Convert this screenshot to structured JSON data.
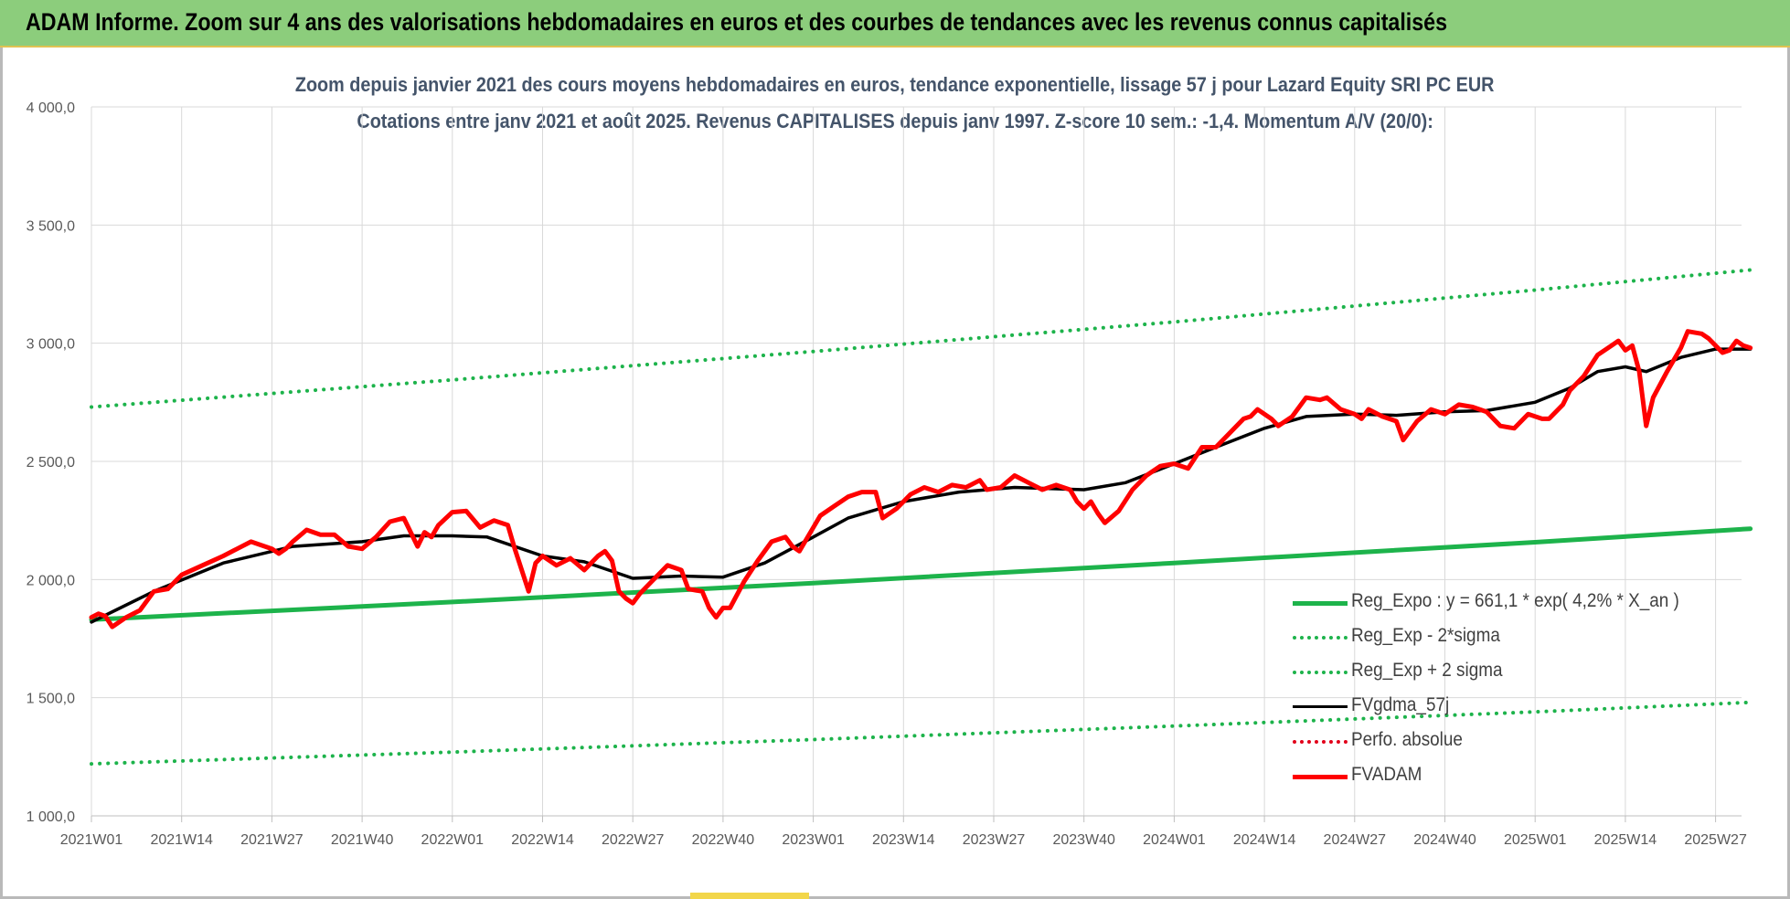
{
  "banner": {
    "title": "ADAM Informe. Zoom sur 4 ans des valorisations hebdomadaires en euros et des courbes de tendances avec les revenus connus capitalisés"
  },
  "colors": {
    "banner_bg": "#8ccd7c",
    "reg_green": "#1db34b",
    "fvgdma": "#000000",
    "perfo": "#e2001a",
    "fvadam": "#ff0000"
  },
  "chart_data": {
    "type": "line",
    "title": "Zoom depuis janvier 2021 des cours moyens hebdomadaires en euros, tendance exponentielle, lissage 57 j pour Lazard Equity SRI PC EUR",
    "subtitle": "Cotations entre janv 2021 et août 2025. Revenus CAPITALISES depuis janv 1997. Z-score 10 sem.: -1,4. Momentum A/V (20/0):",
    "xlabel": "",
    "ylabel": "",
    "ylim": [
      1000,
      4000
    ],
    "y_ticks": [
      "4 000,0",
      "3 500,0",
      "3 000,0",
      "2 500,0",
      "2 000,0",
      "1 500,0",
      "1 000,0"
    ],
    "x_ticks": [
      "2021W01",
      "2021W14",
      "2021W27",
      "2021W40",
      "2022W01",
      "2022W14",
      "2022W27",
      "2022W40",
      "2023W01",
      "2023W14",
      "2023W27",
      "2023W40",
      "2024W01",
      "2024W14",
      "2024W27",
      "2024W40",
      "2025W01",
      "2025W14",
      "2025W27"
    ],
    "x_range_weeks": "2021W01 - 2025W32",
    "grid": true,
    "legend_position": "bottom-right",
    "series": [
      {
        "name": "Reg_Expo : y = 661,1 * exp( 4,2% *  X_an )",
        "style": "solid-thick",
        "color": "#1db34b",
        "points": [
          [
            "2021W01",
            1830
          ],
          [
            "2022W01",
            1905
          ],
          [
            "2023W01",
            1985
          ],
          [
            "2024W01",
            2070
          ],
          [
            "2025W01",
            2158
          ],
          [
            "2025W32",
            2215
          ]
        ]
      },
      {
        "name": "Reg_Exp - 2*sigma",
        "style": "dotted",
        "color": "#1db34b",
        "points": [
          [
            "2021W01",
            1220
          ],
          [
            "2022W01",
            1270
          ],
          [
            "2023W01",
            1323
          ],
          [
            "2024W01",
            1380
          ],
          [
            "2025W01",
            1440
          ],
          [
            "2025W32",
            1480
          ]
        ]
      },
      {
        "name": "Reg_Exp + 2 sigma",
        "style": "dotted",
        "color": "#1db34b",
        "points": [
          [
            "2021W01",
            2730
          ],
          [
            "2022W01",
            2845
          ],
          [
            "2023W01",
            2965
          ],
          [
            "2024W01",
            3090
          ],
          [
            "2025W01",
            3225
          ],
          [
            "2025W32",
            3310
          ]
        ]
      },
      {
        "name": "FVgdma_57j",
        "style": "solid",
        "color": "#000000",
        "points": [
          [
            "2021W01",
            1820
          ],
          [
            "2021W10",
            1950
          ],
          [
            "2021W20",
            2070
          ],
          [
            "2021W30",
            2140
          ],
          [
            "2021W40",
            2160
          ],
          [
            "2021W46",
            2185
          ],
          [
            "2022W01",
            2185
          ],
          [
            "2022W06",
            2180
          ],
          [
            "2022W14",
            2100
          ],
          [
            "2022W20",
            2075
          ],
          [
            "2022W27",
            2005
          ],
          [
            "2022W34",
            2015
          ],
          [
            "2022W40",
            2010
          ],
          [
            "2022W46",
            2070
          ],
          [
            "2023W01",
            2180
          ],
          [
            "2023W06",
            2260
          ],
          [
            "2023W14",
            2330
          ],
          [
            "2023W22",
            2370
          ],
          [
            "2023W30",
            2390
          ],
          [
            "2023W40",
            2380
          ],
          [
            "2023W46",
            2410
          ],
          [
            "2024W01",
            2490
          ],
          [
            "2024W07",
            2560
          ],
          [
            "2024W14",
            2640
          ],
          [
            "2024W20",
            2690
          ],
          [
            "2024W27",
            2700
          ],
          [
            "2024W33",
            2695
          ],
          [
            "2024W40",
            2710
          ],
          [
            "2024W46",
            2715
          ],
          [
            "2025W01",
            2750
          ],
          [
            "2025W06",
            2810
          ],
          [
            "2025W10",
            2880
          ],
          [
            "2025W14",
            2900
          ],
          [
            "2025W17",
            2880
          ],
          [
            "2025W22",
            2940
          ],
          [
            "2025W27",
            2975
          ],
          [
            "2025W32",
            2975
          ]
        ]
      },
      {
        "name": "Perfo. absolue",
        "style": "dotted",
        "color": "#e2001a",
        "points": []
      },
      {
        "name": "FVADAM",
        "style": "solid-thick",
        "color": "#ff0000",
        "points": [
          [
            "2021W01",
            1840
          ],
          [
            "2021W02",
            1855
          ],
          [
            "2021W03",
            1845
          ],
          [
            "2021W04",
            1800
          ],
          [
            "2021W06",
            1840
          ],
          [
            "2021W08",
            1870
          ],
          [
            "2021W10",
            1950
          ],
          [
            "2021W12",
            1960
          ],
          [
            "2021W14",
            2020
          ],
          [
            "2021W17",
            2060
          ],
          [
            "2021W20",
            2100
          ],
          [
            "2021W22",
            2130
          ],
          [
            "2021W24",
            2160
          ],
          [
            "2021W26",
            2140
          ],
          [
            "2021W27",
            2130
          ],
          [
            "2021W28",
            2110
          ],
          [
            "2021W29",
            2130
          ],
          [
            "2021W30",
            2160
          ],
          [
            "2021W32",
            2210
          ],
          [
            "2021W34",
            2190
          ],
          [
            "2021W36",
            2190
          ],
          [
            "2021W38",
            2140
          ],
          [
            "2021W40",
            2130
          ],
          [
            "2021W42",
            2180
          ],
          [
            "2021W44",
            2245
          ],
          [
            "2021W46",
            2260
          ],
          [
            "2021W48",
            2140
          ],
          [
            "2021W49",
            2200
          ],
          [
            "2021W50",
            2180
          ],
          [
            "2021W51",
            2230
          ],
          [
            "2022W01",
            2285
          ],
          [
            "2022W03",
            2290
          ],
          [
            "2022W05",
            2220
          ],
          [
            "2022W07",
            2250
          ],
          [
            "2022W09",
            2230
          ],
          [
            "2022W10",
            2130
          ],
          [
            "2022W12",
            1950
          ],
          [
            "2022W13",
            2070
          ],
          [
            "2022W14",
            2100
          ],
          [
            "2022W16",
            2060
          ],
          [
            "2022W18",
            2090
          ],
          [
            "2022W20",
            2040
          ],
          [
            "2022W22",
            2100
          ],
          [
            "2022W23",
            2120
          ],
          [
            "2022W24",
            2080
          ],
          [
            "2022W25",
            1950
          ],
          [
            "2022W26",
            1920
          ],
          [
            "2022W27",
            1900
          ],
          [
            "2022W28",
            1940
          ],
          [
            "2022W30",
            2000
          ],
          [
            "2022W32",
            2060
          ],
          [
            "2022W34",
            2040
          ],
          [
            "2022W35",
            1960
          ],
          [
            "2022W37",
            1950
          ],
          [
            "2022W38",
            1880
          ],
          [
            "2022W39",
            1840
          ],
          [
            "2022W40",
            1880
          ],
          [
            "2022W41",
            1880
          ],
          [
            "2022W43",
            1990
          ],
          [
            "2022W45",
            2080
          ],
          [
            "2022W47",
            2160
          ],
          [
            "2022W49",
            2180
          ],
          [
            "2022W50",
            2140
          ],
          [
            "2022W51",
            2120
          ],
          [
            "2022W52",
            2170
          ],
          [
            "2023W02",
            2270
          ],
          [
            "2023W04",
            2310
          ],
          [
            "2023W06",
            2350
          ],
          [
            "2023W08",
            2370
          ],
          [
            "2023W10",
            2370
          ],
          [
            "2023W11",
            2260
          ],
          [
            "2023W13",
            2300
          ],
          [
            "2023W15",
            2360
          ],
          [
            "2023W17",
            2390
          ],
          [
            "2023W19",
            2370
          ],
          [
            "2023W21",
            2400
          ],
          [
            "2023W23",
            2390
          ],
          [
            "2023W25",
            2420
          ],
          [
            "2023W26",
            2380
          ],
          [
            "2023W28",
            2390
          ],
          [
            "2023W30",
            2440
          ],
          [
            "2023W32",
            2410
          ],
          [
            "2023W34",
            2380
          ],
          [
            "2023W36",
            2400
          ],
          [
            "2023W38",
            2380
          ],
          [
            "2023W39",
            2330
          ],
          [
            "2023W40",
            2300
          ],
          [
            "2023W41",
            2330
          ],
          [
            "2023W42",
            2280
          ],
          [
            "2023W43",
            2240
          ],
          [
            "2023W45",
            2290
          ],
          [
            "2023W47",
            2380
          ],
          [
            "2023W49",
            2440
          ],
          [
            "2023W51",
            2480
          ],
          [
            "2024W01",
            2490
          ],
          [
            "2024W03",
            2470
          ],
          [
            "2024W05",
            2560
          ],
          [
            "2024W07",
            2560
          ],
          [
            "2024W09",
            2620
          ],
          [
            "2024W11",
            2680
          ],
          [
            "2024W12",
            2690
          ],
          [
            "2024W13",
            2720
          ],
          [
            "2024W15",
            2680
          ],
          [
            "2024W16",
            2650
          ],
          [
            "2024W18",
            2690
          ],
          [
            "2024W20",
            2770
          ],
          [
            "2024W22",
            2760
          ],
          [
            "2024W23",
            2770
          ],
          [
            "2024W25",
            2720
          ],
          [
            "2024W27",
            2700
          ],
          [
            "2024W28",
            2680
          ],
          [
            "2024W29",
            2720
          ],
          [
            "2024W31",
            2690
          ],
          [
            "2024W33",
            2670
          ],
          [
            "2024W34",
            2590
          ],
          [
            "2024W36",
            2670
          ],
          [
            "2024W38",
            2720
          ],
          [
            "2024W40",
            2700
          ],
          [
            "2024W42",
            2740
          ],
          [
            "2024W44",
            2730
          ],
          [
            "2024W46",
            2710
          ],
          [
            "2024W48",
            2650
          ],
          [
            "2024W50",
            2640
          ],
          [
            "2024W52",
            2700
          ],
          [
            "2025W02",
            2680
          ],
          [
            "2025W03",
            2680
          ],
          [
            "2025W05",
            2740
          ],
          [
            "2025W06",
            2800
          ],
          [
            "2025W08",
            2860
          ],
          [
            "2025W10",
            2950
          ],
          [
            "2025W12",
            2990
          ],
          [
            "2025W13",
            3010
          ],
          [
            "2025W14",
            2970
          ],
          [
            "2025W15",
            2990
          ],
          [
            "2025W16",
            2880
          ],
          [
            "2025W17",
            2650
          ],
          [
            "2025W18",
            2770
          ],
          [
            "2025W20",
            2880
          ],
          [
            "2025W22",
            2980
          ],
          [
            "2025W23",
            3050
          ],
          [
            "2025W25",
            3040
          ],
          [
            "2025W26",
            3020
          ],
          [
            "2025W28",
            2960
          ],
          [
            "2025W29",
            2970
          ],
          [
            "2025W30",
            3010
          ],
          [
            "2025W31",
            2990
          ],
          [
            "2025W32",
            2980
          ]
        ]
      }
    ]
  }
}
